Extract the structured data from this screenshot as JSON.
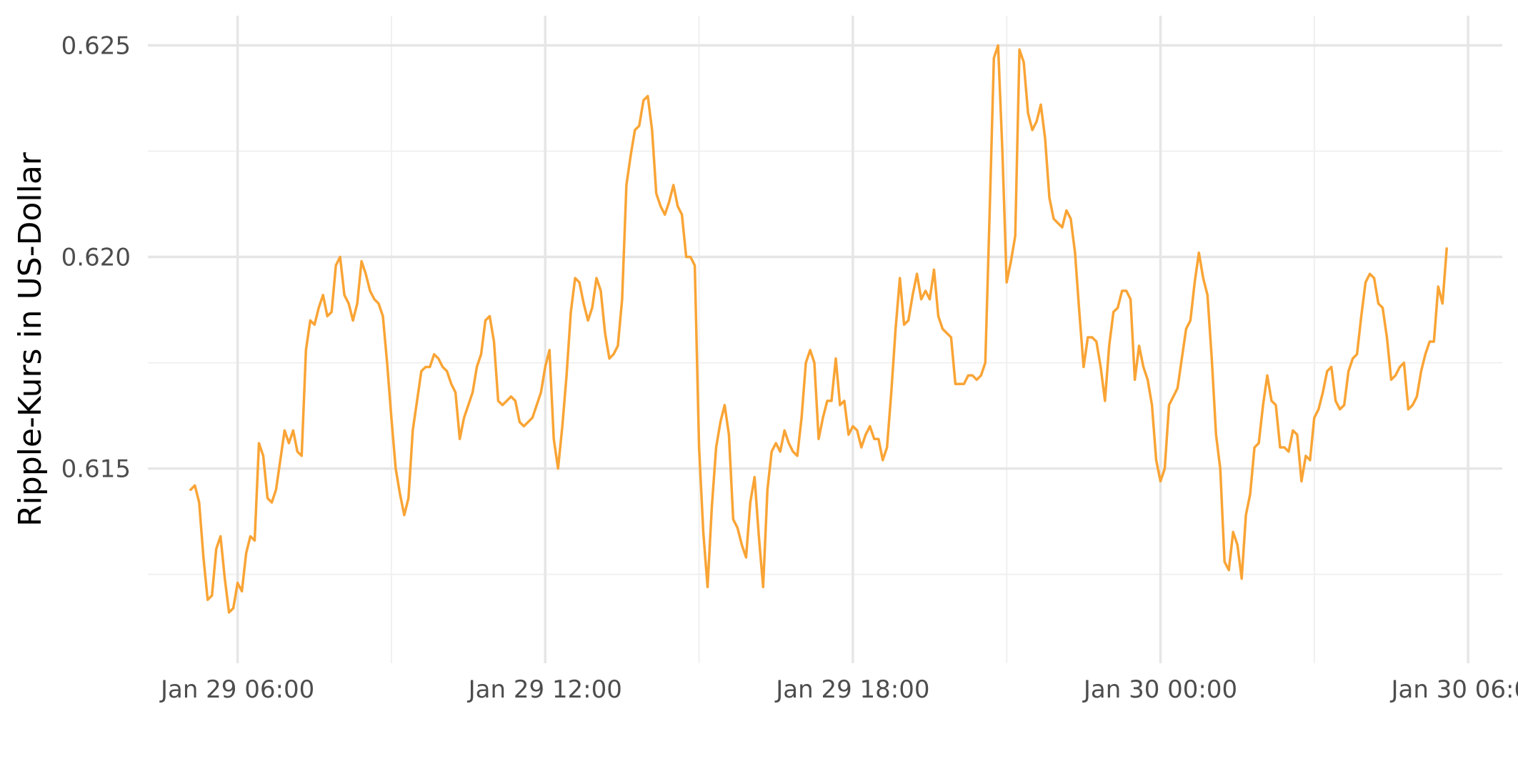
{
  "chart_data": {
    "type": "line",
    "title": "",
    "xlabel": "",
    "ylabel": "Ripple-Kurs in US-Dollar",
    "x_range": [
      "2025-01-29T04:15",
      "2025-01-30T06:40"
    ],
    "ylim": [
      0.6104,
      0.6257
    ],
    "x_ticks": [
      {
        "t": "2025-01-29T06:00",
        "label": "Jan 29 06:00"
      },
      {
        "t": "2025-01-29T12:00",
        "label": "Jan 29 12:00"
      },
      {
        "t": "2025-01-29T18:00",
        "label": "Jan 29 18:00"
      },
      {
        "t": "2025-01-30T00:00",
        "label": "Jan 30 00:00"
      },
      {
        "t": "2025-01-30T06:00",
        "label": "Jan 30 06:00"
      }
    ],
    "x_minor_ticks": [
      "2025-01-29T09:00",
      "2025-01-29T15:00",
      "2025-01-29T21:00",
      "2025-01-30T03:00"
    ],
    "y_ticks": [
      0.615,
      0.62,
      0.625
    ],
    "y_minor_ticks": [
      0.6125,
      0.6175,
      0.6225
    ],
    "grid": true,
    "legend": "none",
    "series": [
      {
        "color": "#F9A435",
        "start": "2025-01-29T05:05",
        "interval_minutes": 5,
        "values": [
          0.6145,
          0.6146,
          0.6142,
          0.6129,
          0.6119,
          0.612,
          0.6131,
          0.6134,
          0.6124,
          0.6116,
          0.6117,
          0.6123,
          0.6121,
          0.613,
          0.6134,
          0.6133,
          0.6156,
          0.6153,
          0.6143,
          0.6142,
          0.6145,
          0.6152,
          0.6159,
          0.6156,
          0.6159,
          0.6154,
          0.6153,
          0.6178,
          0.6185,
          0.6184,
          0.6188,
          0.6191,
          0.6186,
          0.6187,
          0.6198,
          0.62,
          0.6191,
          0.6189,
          0.6185,
          0.6189,
          0.6199,
          0.6196,
          0.6192,
          0.619,
          0.6189,
          0.6186,
          0.6175,
          0.6162,
          0.615,
          0.6144,
          0.6139,
          0.6143,
          0.6159,
          0.6166,
          0.6173,
          0.6174,
          0.6174,
          0.6177,
          0.6176,
          0.6174,
          0.6173,
          0.617,
          0.6168,
          0.6157,
          0.6162,
          0.6165,
          0.6168,
          0.6174,
          0.6177,
          0.6185,
          0.6186,
          0.618,
          0.6166,
          0.6165,
          0.6166,
          0.6167,
          0.6166,
          0.6161,
          0.616,
          0.6161,
          0.6162,
          0.6165,
          0.6168,
          0.6174,
          0.6178,
          0.6157,
          0.615,
          0.616,
          0.6172,
          0.6187,
          0.6195,
          0.6194,
          0.6189,
          0.6185,
          0.6188,
          0.6195,
          0.6192,
          0.6182,
          0.6176,
          0.6177,
          0.6179,
          0.619,
          0.6217,
          0.6224,
          0.623,
          0.6231,
          0.6237,
          0.6238,
          0.623,
          0.6215,
          0.6212,
          0.621,
          0.6213,
          0.6217,
          0.6212,
          0.621,
          0.62,
          0.62,
          0.6198,
          0.6155,
          0.6135,
          0.6122,
          0.6141,
          0.6155,
          0.6161,
          0.6165,
          0.6158,
          0.6138,
          0.6136,
          0.6132,
          0.6129,
          0.6142,
          0.6148,
          0.6134,
          0.6122,
          0.6145,
          0.6154,
          0.6156,
          0.6154,
          0.6159,
          0.6156,
          0.6154,
          0.6153,
          0.6162,
          0.6175,
          0.6178,
          0.6175,
          0.6157,
          0.6162,
          0.6166,
          0.6166,
          0.6176,
          0.6165,
          0.6166,
          0.6158,
          0.616,
          0.6159,
          0.6155,
          0.6158,
          0.616,
          0.6157,
          0.6157,
          0.6152,
          0.6155,
          0.6168,
          0.6183,
          0.6195,
          0.6184,
          0.6185,
          0.6191,
          0.6196,
          0.619,
          0.6192,
          0.619,
          0.6197,
          0.6186,
          0.6183,
          0.6182,
          0.6181,
          0.617,
          0.617,
          0.617,
          0.6172,
          0.6172,
          0.6171,
          0.6172,
          0.6175,
          0.621,
          0.6247,
          0.625,
          0.6225,
          0.6194,
          0.6199,
          0.6205,
          0.6249,
          0.6246,
          0.6234,
          0.623,
          0.6232,
          0.6236,
          0.6228,
          0.6214,
          0.6209,
          0.6208,
          0.6207,
          0.6211,
          0.6209,
          0.6201,
          0.6187,
          0.6174,
          0.6181,
          0.6181,
          0.618,
          0.6174,
          0.6166,
          0.6179,
          0.6187,
          0.6188,
          0.6192,
          0.6192,
          0.619,
          0.6171,
          0.6179,
          0.6174,
          0.6171,
          0.6165,
          0.6152,
          0.6147,
          0.615,
          0.6165,
          0.6167,
          0.6169,
          0.6176,
          0.6183,
          0.6185,
          0.6194,
          0.6201,
          0.6195,
          0.6191,
          0.6176,
          0.6158,
          0.615,
          0.6128,
          0.6126,
          0.6135,
          0.6132,
          0.6124,
          0.6139,
          0.6144,
          0.6155,
          0.6156,
          0.6165,
          0.6172,
          0.6166,
          0.6165,
          0.6155,
          0.6155,
          0.6154,
          0.6159,
          0.6158,
          0.6147,
          0.6153,
          0.6152,
          0.6162,
          0.6164,
          0.6168,
          0.6173,
          0.6174,
          0.6166,
          0.6164,
          0.6165,
          0.6173,
          0.6176,
          0.6177,
          0.6186,
          0.6194,
          0.6196,
          0.6195,
          0.6189,
          0.6188,
          0.6181,
          0.6171,
          0.6172,
          0.6174,
          0.6175,
          0.6164,
          0.6165,
          0.6167,
          0.6173,
          0.6177,
          0.618,
          0.618,
          0.6193,
          0.6189,
          0.6202
        ]
      }
    ]
  }
}
